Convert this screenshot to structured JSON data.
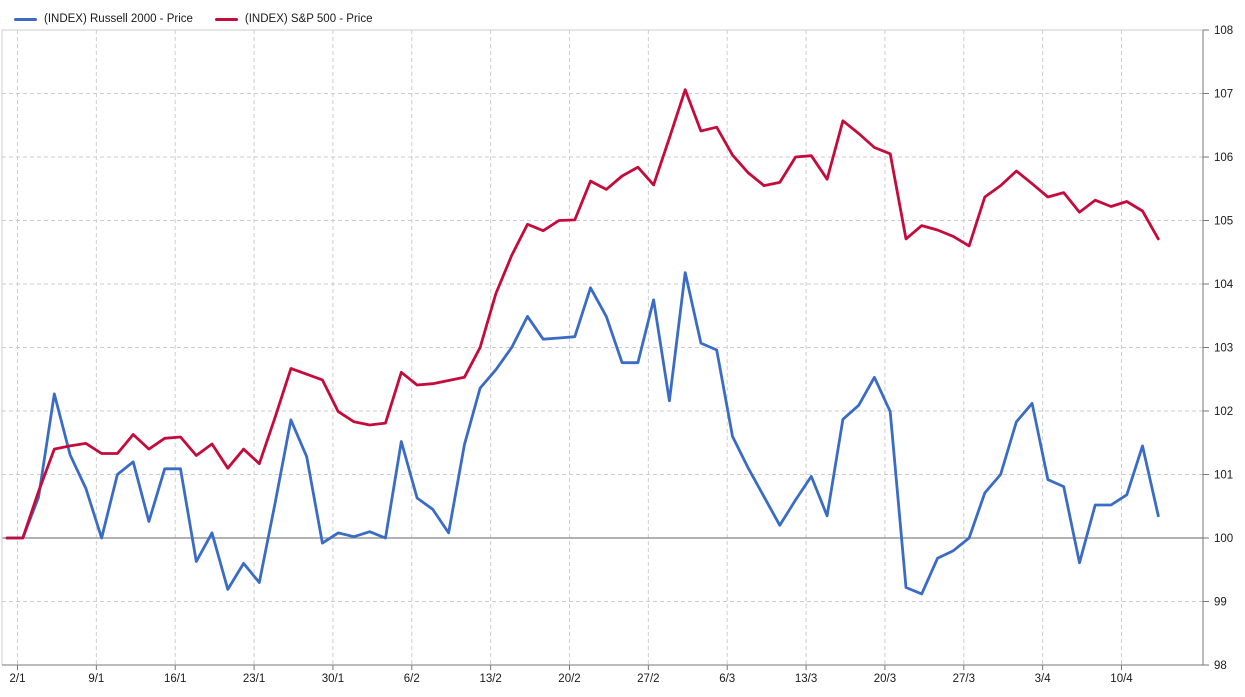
{
  "legend": {
    "items": [
      {
        "label": "(INDEX) Russell 2000 - Price",
        "color": "#3A6CC5"
      },
      {
        "label": "(INDEX) S&P 500 - Price",
        "color": "#C40B3C"
      }
    ]
  },
  "colors": {
    "russell_line": "#3A6CC5",
    "sp500_line": "#C40B3C",
    "grid": "#CDCDCD",
    "baseline_100": "#858585",
    "axis": "#777777",
    "tick_label": "#1a1a1a"
  },
  "chart_data": {
    "type": "line",
    "title": "",
    "xlabel": "",
    "ylabel": "",
    "y_axis": {
      "min": 98,
      "max": 108,
      "tick_step": 1,
      "side": "right",
      "baseline": 100
    },
    "y_ticks": [
      98,
      99,
      100,
      101,
      102,
      103,
      104,
      105,
      106,
      107,
      108
    ],
    "x_tick_labels": [
      "2/1",
      "9/1",
      "16/1",
      "23/1",
      "30/1",
      "6/2",
      "13/2",
      "20/2",
      "27/2",
      "6/3",
      "13/3",
      "20/3",
      "27/3",
      "3/4",
      "10/4"
    ],
    "grid": true,
    "legend_position": "top-left",
    "dates": [
      "30/12",
      "2/1",
      "3/1",
      "4/1",
      "5/1",
      "6/1",
      "9/1",
      "10/1",
      "11/1",
      "12/1",
      "13/1",
      "16/1",
      "17/1",
      "18/1",
      "19/1",
      "20/1",
      "23/1",
      "24/1",
      "25/1",
      "26/1",
      "27/1",
      "30/1",
      "31/1",
      "1/2",
      "2/2",
      "3/2",
      "6/2",
      "7/2",
      "8/2",
      "9/2",
      "10/2",
      "13/2",
      "14/2",
      "15/2",
      "16/2",
      "17/2",
      "20/2",
      "21/2",
      "22/2",
      "23/2",
      "24/2",
      "27/2",
      "28/2",
      "1/3",
      "2/3",
      "3/3",
      "6/3",
      "7/3",
      "8/3",
      "9/3",
      "10/3",
      "13/3",
      "14/3",
      "15/3",
      "16/3",
      "17/3",
      "20/3",
      "21/3",
      "22/3",
      "23/3",
      "24/3",
      "27/3",
      "28/3",
      "29/3",
      "30/3",
      "31/3",
      "3/4",
      "4/4",
      "5/4",
      "6/4",
      "7/4",
      "10/4",
      "11/4",
      "12/4"
    ],
    "series": [
      {
        "name": "(INDEX) Russell 2000 - Price",
        "color": "#3A6CC5",
        "values": [
          100.0,
          100.0,
          100.64,
          102.27,
          101.31,
          100.78,
          100.0,
          101.0,
          101.2,
          100.26,
          101.09,
          101.09,
          99.63,
          100.08,
          99.19,
          99.6,
          99.3,
          100.55,
          101.86,
          101.28,
          99.92,
          100.08,
          100.02,
          100.1,
          100.0,
          101.52,
          100.63,
          100.45,
          100.08,
          101.47,
          102.36,
          102.65,
          103.0,
          103.49,
          103.13,
          103.15,
          103.17,
          103.94,
          103.49,
          102.76,
          102.76,
          103.75,
          102.16,
          104.18,
          103.07,
          102.96,
          101.6,
          101.1,
          100.65,
          100.2,
          100.6,
          100.97,
          100.35,
          101.87,
          102.09,
          102.53,
          101.99,
          99.22,
          99.12,
          99.68,
          99.8,
          100.0,
          100.71,
          101.0,
          101.83,
          102.12,
          100.92,
          100.81,
          99.61,
          100.52,
          100.52,
          100.68,
          101.45,
          100.35
        ]
      },
      {
        "name": "(INDEX) S&P 500 - Price",
        "color": "#C40B3C",
        "values": [
          100.0,
          100.0,
          100.73,
          101.4,
          101.45,
          101.49,
          101.33,
          101.33,
          101.63,
          101.4,
          101.57,
          101.59,
          101.3,
          101.48,
          101.1,
          101.4,
          101.17,
          101.9,
          102.67,
          102.58,
          102.49,
          101.99,
          101.83,
          101.78,
          101.81,
          102.61,
          102.41,
          102.43,
          102.48,
          102.53,
          103.0,
          103.85,
          104.45,
          104.94,
          104.84,
          105.0,
          105.01,
          105.62,
          105.49,
          105.7,
          105.84,
          105.56,
          106.3,
          107.06,
          106.41,
          106.47,
          106.03,
          105.75,
          105.55,
          105.6,
          106.0,
          106.02,
          105.65,
          106.57,
          106.37,
          106.15,
          106.05,
          104.71,
          104.92,
          104.85,
          104.75,
          104.6,
          105.37,
          105.55,
          105.78,
          105.58,
          105.37,
          105.44,
          105.13,
          105.32,
          105.22,
          105.3,
          105.15,
          104.71
        ]
      }
    ]
  }
}
